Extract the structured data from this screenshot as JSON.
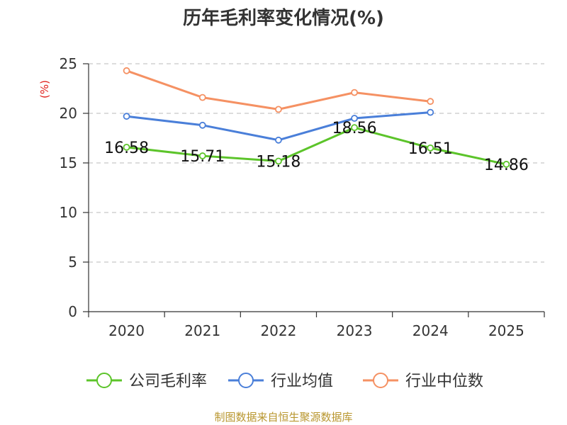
{
  "chart_data": {
    "type": "line",
    "title": "历年毛利率变化情况(%)",
    "ylabel": "(%)",
    "ylim": [
      0,
      25
    ],
    "yticks": [
      0,
      5,
      10,
      15,
      20,
      25
    ],
    "categories": [
      "2020",
      "2021",
      "2022",
      "2023",
      "2024",
      "2025"
    ],
    "grid": true,
    "legend_position": "bottom",
    "series": [
      {
        "name": "公司毛利率",
        "color": "#5cc42a",
        "values": [
          16.58,
          15.71,
          15.18,
          18.56,
          16.51,
          14.86
        ],
        "labels": [
          "16.58",
          "15.71",
          "15.18",
          "18.56",
          "16.51",
          "14.86"
        ]
      },
      {
        "name": "行业均值",
        "color": "#4a7fd9",
        "values": [
          19.7,
          18.8,
          17.3,
          19.5,
          20.1,
          null
        ]
      },
      {
        "name": "行业中位数",
        "color": "#f59163",
        "values": [
          24.3,
          21.6,
          20.4,
          22.1,
          21.2,
          null
        ]
      }
    ]
  },
  "unit_color": "#e0201c",
  "source": {
    "text": "制图数据来自恒生聚源数据库",
    "color": "#b8962e"
  }
}
